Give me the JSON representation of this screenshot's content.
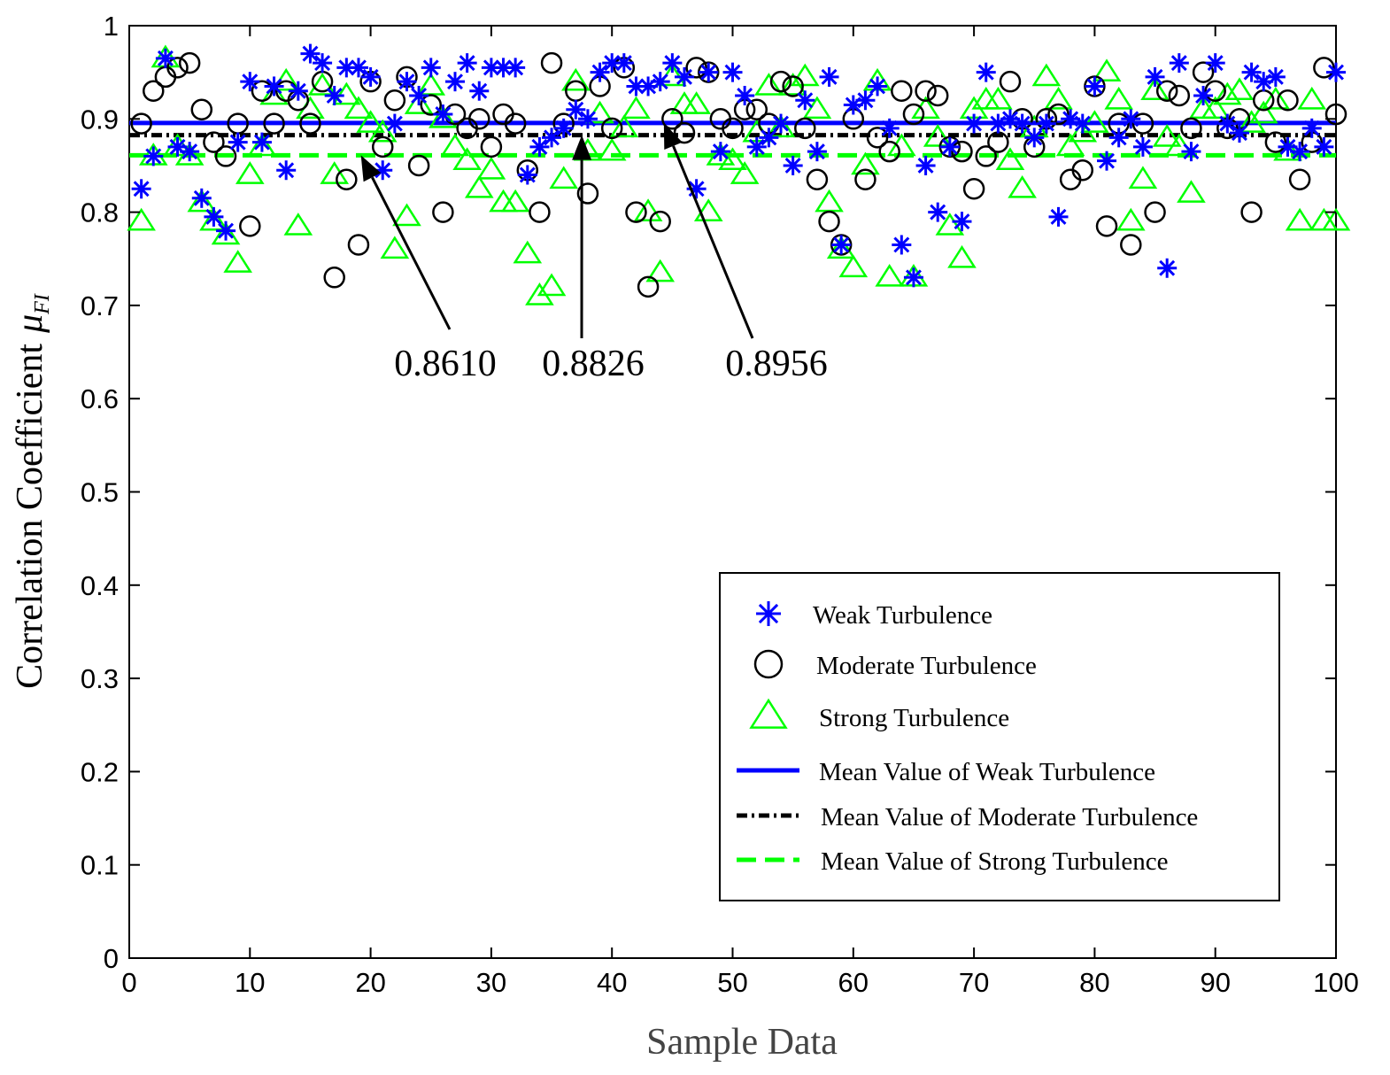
{
  "chart_data": {
    "type": "scatter",
    "xlabel": "Sample Data",
    "ylabel": "Correlation Coefficient",
    "ylabel_symbol": "μ",
    "ylabel_subscript": "FI",
    "xlim": [
      0,
      100
    ],
    "ylim": [
      0,
      1
    ],
    "xticks": [
      "0",
      "10",
      "20",
      "30",
      "40",
      "50",
      "60",
      "70",
      "80",
      "90",
      "100"
    ],
    "yticks": [
      "0",
      "0.1",
      "0.2",
      "0.3",
      "0.4",
      "0.5",
      "0.6",
      "0.7",
      "0.8",
      "0.9",
      "1"
    ],
    "series": [
      {
        "name": "Weak Turbulence",
        "marker": "asterisk",
        "color": "#0000ff",
        "x": [
          1,
          2,
          3,
          4,
          5,
          6,
          7,
          8,
          9,
          10,
          11,
          12,
          13,
          14,
          15,
          16,
          17,
          18,
          19,
          20,
          21,
          22,
          23,
          24,
          25,
          26,
          27,
          28,
          29,
          30,
          31,
          32,
          33,
          34,
          35,
          36,
          37,
          38,
          39,
          40,
          41,
          42,
          43,
          44,
          45,
          46,
          47,
          48,
          49,
          50,
          51,
          52,
          53,
          54,
          55,
          56,
          57,
          58,
          59,
          60,
          61,
          62,
          63,
          64,
          65,
          66,
          67,
          68,
          69,
          70,
          71,
          72,
          73,
          74,
          75,
          76,
          77,
          78,
          79,
          80,
          81,
          82,
          83,
          84,
          85,
          86,
          87,
          88,
          89,
          90,
          91,
          92,
          93,
          94,
          95,
          96,
          97,
          98,
          99,
          100
        ],
        "values": [
          0.825,
          0.86,
          0.965,
          0.87,
          0.865,
          0.815,
          0.795,
          0.78,
          0.875,
          0.94,
          0.875,
          0.935,
          0.845,
          0.93,
          0.97,
          0.96,
          0.925,
          0.955,
          0.955,
          0.945,
          0.845,
          0.895,
          0.94,
          0.925,
          0.955,
          0.905,
          0.94,
          0.96,
          0.93,
          0.955,
          0.955,
          0.955,
          0.84,
          0.87,
          0.88,
          0.89,
          0.91,
          0.9,
          0.95,
          0.96,
          0.96,
          0.935,
          0.935,
          0.94,
          0.96,
          0.945,
          0.825,
          0.95,
          0.865,
          0.95,
          0.925,
          0.87,
          0.88,
          0.895,
          0.85,
          0.92,
          0.865,
          0.945,
          0.765,
          0.915,
          0.92,
          0.935,
          0.89,
          0.765,
          0.73,
          0.85,
          0.8,
          0.87,
          0.79,
          0.895,
          0.95,
          0.895,
          0.9,
          0.895,
          0.88,
          0.895,
          0.795,
          0.9,
          0.895,
          0.935,
          0.855,
          0.88,
          0.9,
          0.87,
          0.945,
          0.74,
          0.96,
          0.865,
          0.925,
          0.96,
          0.895,
          0.885,
          0.95,
          0.94,
          0.945,
          0.87,
          0.865,
          0.89,
          0.87,
          0.95
        ]
      },
      {
        "name": "Moderate Turbulence",
        "marker": "circle",
        "color": "#000000",
        "x": [
          1,
          2,
          3,
          4,
          5,
          6,
          7,
          8,
          9,
          10,
          11,
          12,
          13,
          14,
          15,
          16,
          17,
          18,
          19,
          20,
          21,
          22,
          23,
          24,
          25,
          26,
          27,
          28,
          29,
          30,
          31,
          32,
          33,
          34,
          35,
          36,
          37,
          38,
          39,
          40,
          41,
          42,
          43,
          44,
          45,
          46,
          47,
          48,
          49,
          50,
          51,
          52,
          53,
          54,
          55,
          56,
          57,
          58,
          59,
          60,
          61,
          62,
          63,
          64,
          65,
          66,
          67,
          68,
          69,
          70,
          71,
          72,
          73,
          74,
          75,
          76,
          77,
          78,
          79,
          80,
          81,
          82,
          83,
          84,
          85,
          86,
          87,
          88,
          89,
          90,
          91,
          92,
          93,
          94,
          95,
          96,
          97,
          98,
          99,
          100
        ],
        "values": [
          0.895,
          0.93,
          0.945,
          0.955,
          0.96,
          0.91,
          0.875,
          0.86,
          0.895,
          0.785,
          0.93,
          0.895,
          0.93,
          0.92,
          0.895,
          0.94,
          0.73,
          0.835,
          0.765,
          0.94,
          0.87,
          0.92,
          0.945,
          0.85,
          0.915,
          0.8,
          0.905,
          0.89,
          0.9,
          0.87,
          0.905,
          0.895,
          0.845,
          0.8,
          0.96,
          0.895,
          0.93,
          0.82,
          0.935,
          0.89,
          0.955,
          0.8,
          0.72,
          0.79,
          0.9,
          0.885,
          0.955,
          0.95,
          0.9,
          0.89,
          0.91,
          0.91,
          0.895,
          0.94,
          0.935,
          0.89,
          0.835,
          0.79,
          0.765,
          0.9,
          0.835,
          0.88,
          0.865,
          0.93,
          0.905,
          0.93,
          0.925,
          0.87,
          0.865,
          0.825,
          0.86,
          0.875,
          0.94,
          0.9,
          0.87,
          0.9,
          0.905,
          0.835,
          0.845,
          0.935,
          0.785,
          0.895,
          0.765,
          0.895,
          0.8,
          0.93,
          0.925,
          0.89,
          0.95,
          0.93,
          0.89,
          0.9,
          0.8,
          0.92,
          0.875,
          0.92,
          0.835,
          0.875,
          0.955,
          0.905
        ]
      },
      {
        "name": "Strong Turbulence",
        "marker": "triangle",
        "color": "#00ff00",
        "x": [
          1,
          2,
          3,
          4,
          5,
          6,
          7,
          8,
          9,
          10,
          11,
          12,
          13,
          14,
          15,
          16,
          17,
          18,
          19,
          20,
          21,
          22,
          23,
          24,
          25,
          26,
          27,
          28,
          29,
          30,
          31,
          32,
          33,
          34,
          35,
          36,
          37,
          38,
          39,
          40,
          41,
          42,
          43,
          44,
          45,
          46,
          47,
          48,
          49,
          50,
          51,
          52,
          53,
          54,
          55,
          56,
          57,
          58,
          59,
          60,
          61,
          62,
          63,
          64,
          65,
          66,
          67,
          68,
          69,
          70,
          71,
          72,
          73,
          74,
          75,
          76,
          77,
          78,
          79,
          80,
          81,
          82,
          83,
          84,
          85,
          86,
          87,
          88,
          89,
          90,
          91,
          92,
          93,
          94,
          95,
          96,
          97,
          98,
          99,
          100
        ],
        "values": [
          0.79,
          0.86,
          0.965,
          0.87,
          0.86,
          0.81,
          0.79,
          0.775,
          0.745,
          0.84,
          0.87,
          0.925,
          0.94,
          0.785,
          0.91,
          0.935,
          0.84,
          0.925,
          0.91,
          0.895,
          0.885,
          0.76,
          0.795,
          0.915,
          0.935,
          0.9,
          0.87,
          0.855,
          0.825,
          0.845,
          0.81,
          0.81,
          0.755,
          0.71,
          0.72,
          0.835,
          0.94,
          0.865,
          0.905,
          0.865,
          0.89,
          0.91,
          0.8,
          0.735,
          0.945,
          0.915,
          0.915,
          0.8,
          0.86,
          0.855,
          0.84,
          0.885,
          0.935,
          0.89,
          0.935,
          0.945,
          0.91,
          0.81,
          0.76,
          0.74,
          0.85,
          0.94,
          0.73,
          0.87,
          0.73,
          0.91,
          0.88,
          0.785,
          0.75,
          0.91,
          0.92,
          0.92,
          0.855,
          0.825,
          0.89,
          0.945,
          0.92,
          0.87,
          0.885,
          0.895,
          0.95,
          0.92,
          0.79,
          0.835,
          0.93,
          0.88,
          0.87,
          0.82,
          0.91,
          0.91,
          0.925,
          0.93,
          0.895,
          0.905,
          0.92,
          0.865,
          0.79,
          0.92,
          0.79,
          0.79
        ]
      }
    ],
    "mean_lines": [
      {
        "name": "Mean Value of Weak Turbulence",
        "value": 0.8956,
        "label": "0.8956",
        "color": "#0000ff",
        "style": "solid"
      },
      {
        "name": "Mean Value of Moderate Turbulence",
        "value": 0.8826,
        "label": "0.8826",
        "color": "#000000",
        "style": "dash-dot"
      },
      {
        "name": "Mean Value of Strong Turbulence",
        "value": 0.861,
        "label": "0.8610",
        "color": "#00ff00",
        "style": "dashed"
      }
    ],
    "annotations": [
      {
        "text": "0.8610",
        "points_to_x": 19.2,
        "points_to_y": 0.861
      },
      {
        "text": "0.8826",
        "points_to_x": 37.5,
        "points_to_y": 0.8826
      },
      {
        "text": "0.8956",
        "points_to_x": 44.3,
        "points_to_y": 0.8956
      }
    ],
    "legend": {
      "position": "lower-right",
      "entries": [
        "Weak Turbulence",
        "Moderate Turbulence",
        "Strong Turbulence",
        "Mean Value of Weak Turbulence",
        "Mean Value of Moderate Turbulence",
        "Mean Value of Strong Turbulence"
      ]
    },
    "grid": false
  }
}
